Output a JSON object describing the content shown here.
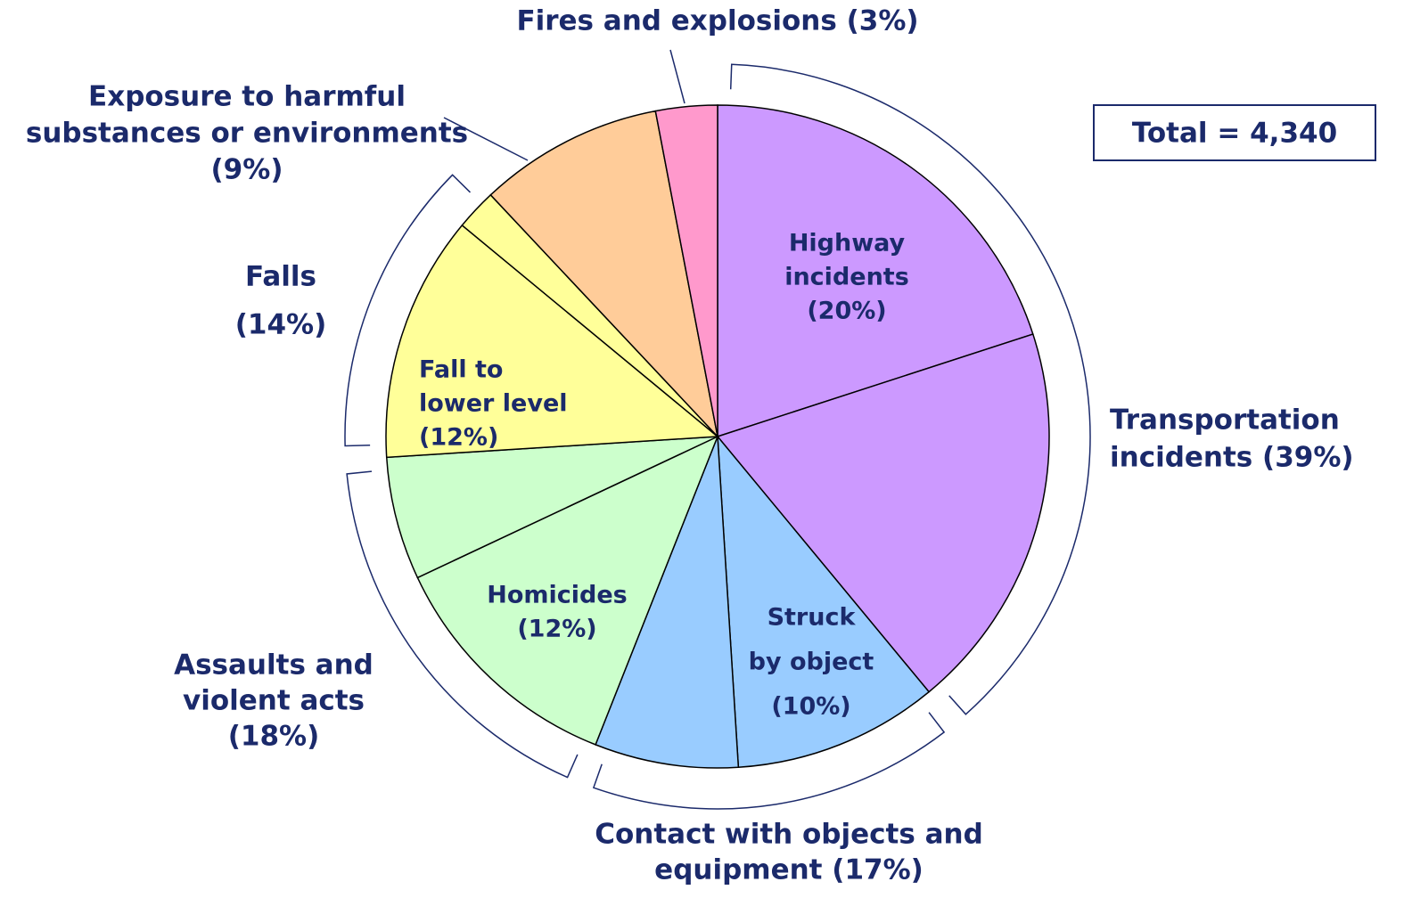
{
  "chart_data": {
    "type": "pie",
    "categories": [
      [
        "Highway",
        "incidents",
        "(20%)"
      ],
      null,
      [
        "Struck",
        "by object",
        "(10%)"
      ],
      null,
      [
        "Homicides",
        "(12%)"
      ],
      null,
      [
        "Fall to",
        "lower level",
        "(12%)"
      ],
      null,
      null,
      null
    ],
    "values": [
      20,
      19,
      10,
      7,
      12,
      6,
      12,
      2,
      9,
      3
    ],
    "colors": [
      "#cc99ff",
      "#cc99ff",
      "#99ccff",
      "#99ccff",
      "#ccffcc",
      "#ccffcc",
      "#ffff99",
      "#ffff99",
      "#ffcc99",
      "#ff99cc"
    ],
    "groups": {
      "labels": [
        [
          "Transportation",
          "incidents  (39%)"
        ],
        [
          "Contact with objects and",
          "equipment (17%)"
        ],
        [
          "Assaults and",
          "violent acts",
          "(18%)"
        ],
        [
          "Falls",
          "(14%)"
        ],
        [
          "Exposure to harmful",
          "substances or environments",
          "(9%)"
        ],
        [
          "Fires and explosions (3%)"
        ]
      ],
      "values": [
        39,
        17,
        18,
        14,
        9,
        3
      ]
    },
    "annotation": "Total = 4,340"
  }
}
